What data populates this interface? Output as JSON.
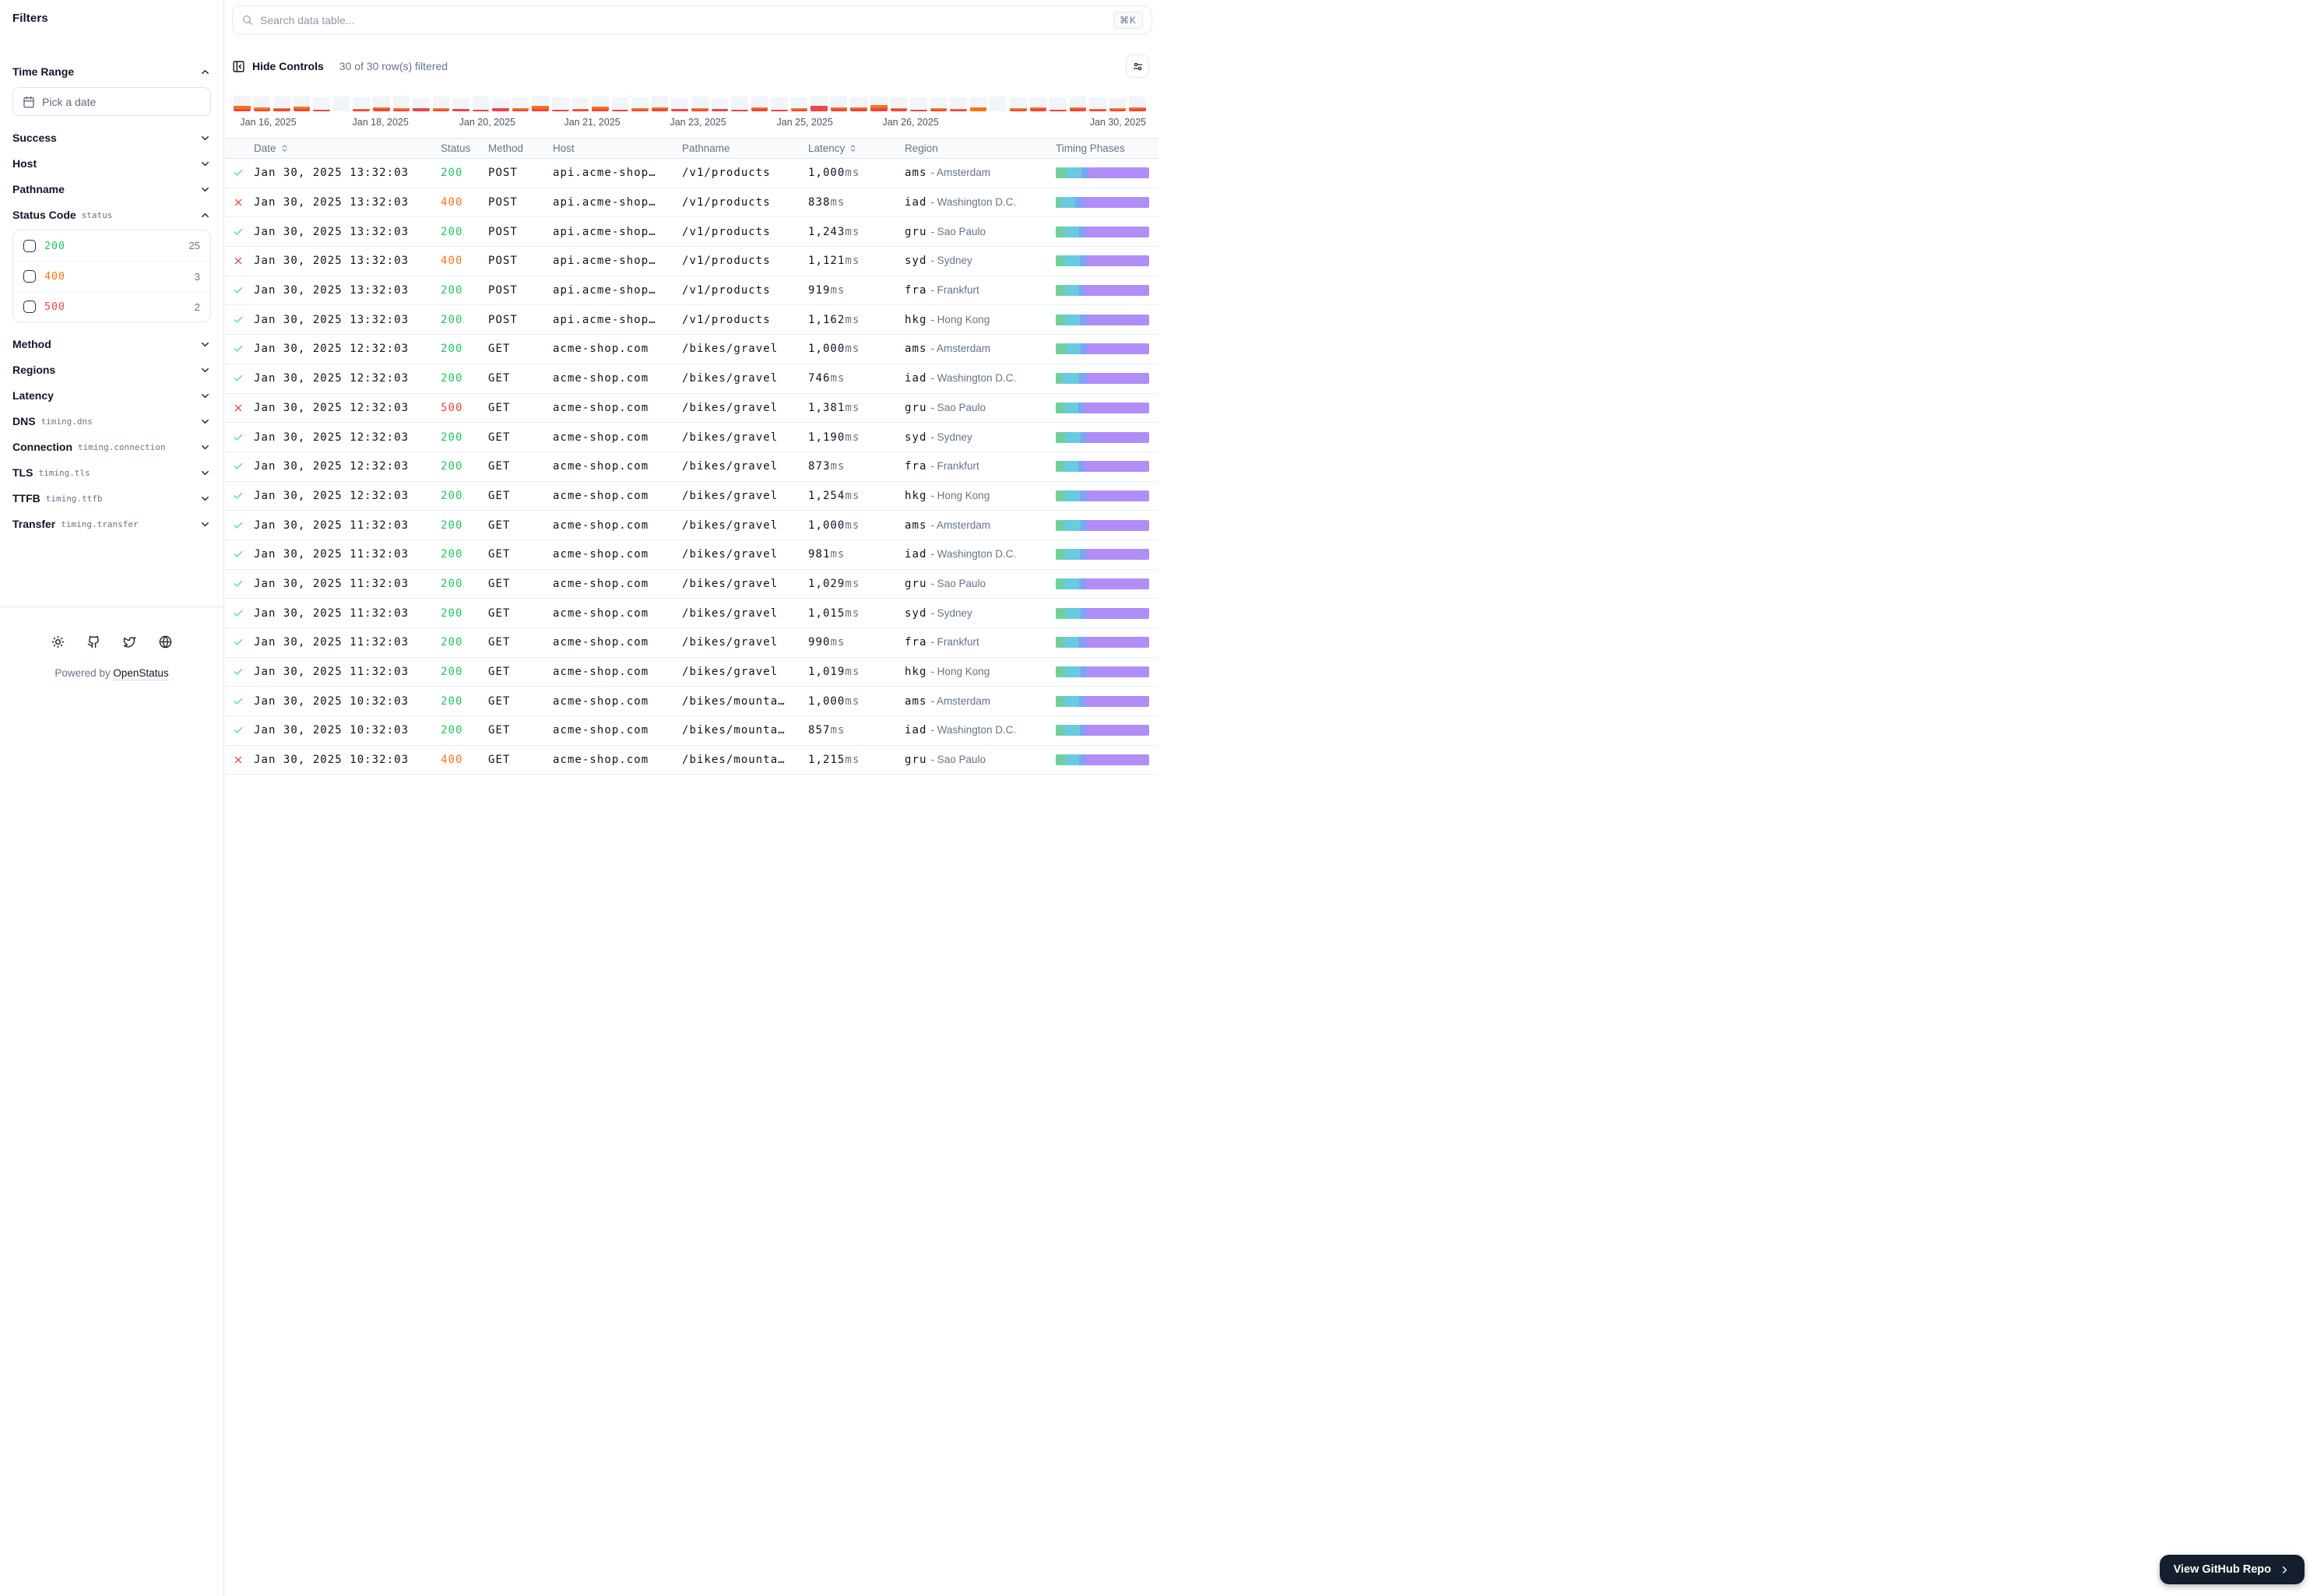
{
  "sidebar": {
    "title": "Filters",
    "date_placeholder": "Pick a date",
    "sections_top": [
      {
        "label": "Time Range",
        "expanded": true
      }
    ],
    "sections_mid": [
      {
        "label": "Success",
        "expanded": false
      },
      {
        "label": "Host",
        "expanded": false
      },
      {
        "label": "Pathname",
        "expanded": false
      },
      {
        "label": "Status Code",
        "code": "status",
        "expanded": true
      }
    ],
    "status_options": [
      {
        "value": "200",
        "count": "25",
        "color": "#22c55e"
      },
      {
        "value": "400",
        "count": "3",
        "color": "#f97316"
      },
      {
        "value": "500",
        "count": "2",
        "color": "#ef4444"
      }
    ],
    "sections_bottom": [
      {
        "label": "Method",
        "expanded": false
      },
      {
        "label": "Regions",
        "expanded": false
      },
      {
        "label": "Latency",
        "expanded": false
      },
      {
        "label": "DNS",
        "code": "timing.dns",
        "expanded": false
      },
      {
        "label": "Connection",
        "code": "timing.connection",
        "expanded": false
      },
      {
        "label": "TLS",
        "code": "timing.tls",
        "expanded": false
      },
      {
        "label": "TTFB",
        "code": "timing.ttfb",
        "expanded": false
      },
      {
        "label": "Transfer",
        "code": "timing.transfer",
        "expanded": false
      }
    ],
    "footer": {
      "icons": [
        "sun-icon",
        "github-icon",
        "twitter-icon",
        "globe-icon"
      ],
      "powered_prefix": "Powered by",
      "powered_link": "OpenStatus"
    }
  },
  "toolbar": {
    "search_placeholder": "Search data table...",
    "kbd": "⌘K",
    "hide_controls": "Hide Controls",
    "filtered": "30 of 30 row(s) filtered"
  },
  "colors": {
    "status": {
      "200": "#22c55e",
      "400": "#f97316",
      "500": "#ef4444"
    },
    "timing": [
      "#6fd09d",
      "#69cbdd",
      "#7aa5f8",
      "#b08df7"
    ],
    "chart": {
      "success": "#f1f5f9",
      "degraded": "#f97316",
      "error": "#ef4444"
    },
    "button_dark": "#141e2c"
  },
  "chart_data": {
    "type": "bar",
    "stacked": true,
    "legend_position": "none",
    "grid": false,
    "unit": "px-height (relative request volume per 8h bucket)",
    "series_names": [
      "success",
      "degraded",
      "error"
    ],
    "x_labels": [
      {
        "text": "Jan 16, 2025",
        "pos": 3.8
      },
      {
        "text": "Jan 18, 2025",
        "pos": 16.1
      },
      {
        "text": "Jan 20, 2025",
        "pos": 27.8
      },
      {
        "text": "Jan 21, 2025",
        "pos": 39.3
      },
      {
        "text": "Jan 23, 2025",
        "pos": 50.9
      },
      {
        "text": "Jan 25, 2025",
        "pos": 62.6
      },
      {
        "text": "Jan 26, 2025",
        "pos": 74.2
      },
      {
        "text": "Jan 30, 2025",
        "pos": 100
      }
    ],
    "bars": [
      [
        13,
        4,
        3
      ],
      [
        14,
        3,
        2
      ],
      [
        15,
        1,
        3
      ],
      [
        13,
        3,
        3
      ],
      [
        16,
        0,
        2
      ],
      [
        19,
        0,
        0
      ],
      [
        15,
        1,
        2
      ],
      [
        14,
        2,
        3
      ],
      [
        15,
        2,
        2
      ],
      [
        13,
        0,
        4
      ],
      [
        15,
        2,
        2
      ],
      [
        14,
        0,
        3
      ],
      [
        17,
        0,
        2
      ],
      [
        12,
        0,
        4
      ],
      [
        14,
        2,
        2
      ],
      [
        12,
        4,
        3
      ],
      [
        16,
        0,
        2
      ],
      [
        15,
        1,
        2
      ],
      [
        13,
        3,
        3
      ],
      [
        16,
        0,
        2
      ],
      [
        14,
        2,
        2
      ],
      [
        15,
        2,
        3
      ],
      [
        14,
        0,
        3
      ],
      [
        15,
        2,
        2
      ],
      [
        14,
        0,
        3
      ],
      [
        17,
        0,
        2
      ],
      [
        14,
        2,
        3
      ],
      [
        16,
        0,
        2
      ],
      [
        14,
        2,
        2
      ],
      [
        12,
        0,
        7
      ],
      [
        14,
        2,
        3
      ],
      [
        13,
        2,
        3
      ],
      [
        11,
        4,
        4
      ],
      [
        14,
        1,
        3
      ],
      [
        16,
        0,
        2
      ],
      [
        14,
        2,
        2
      ],
      [
        15,
        1,
        2
      ],
      [
        13,
        5,
        0
      ],
      [
        19,
        0,
        0
      ],
      [
        14,
        2,
        2
      ],
      [
        13,
        2,
        3
      ],
      [
        16,
        0,
        2
      ],
      [
        14,
        2,
        3
      ],
      [
        15,
        1,
        2
      ],
      [
        13,
        2,
        2
      ],
      [
        14,
        2,
        3
      ]
    ]
  },
  "table": {
    "latency_unit": "ms",
    "columns": [
      {
        "label": "Date",
        "sortable": true
      },
      {
        "label": "Status",
        "sortable": false
      },
      {
        "label": "Method",
        "sortable": false
      },
      {
        "label": "Host",
        "sortable": false
      },
      {
        "label": "Pathname",
        "sortable": false
      },
      {
        "label": "Latency",
        "sortable": true
      },
      {
        "label": "Region",
        "sortable": false
      },
      {
        "label": "Timing Phases",
        "sortable": false
      }
    ],
    "rows": [
      {
        "ok": true,
        "date": "Jan 30, 2025 13:32:03",
        "status": "200",
        "method": "POST",
        "host": "api.acme-shop…",
        "pathname": "/v1/products",
        "latency": "1,000",
        "region": "ams",
        "city": "Amsterdam",
        "timing": [
          11,
          17,
          7,
          65
        ]
      },
      {
        "ok": false,
        "date": "Jan 30, 2025 13:32:03",
        "status": "400",
        "method": "POST",
        "host": "api.acme-shop…",
        "pathname": "/v1/products",
        "latency": "838",
        "region": "iad",
        "city": "Washington D.C.",
        "timing": [
          5,
          16,
          8,
          71
        ]
      },
      {
        "ok": true,
        "date": "Jan 30, 2025 13:32:03",
        "status": "200",
        "method": "POST",
        "host": "api.acme-shop…",
        "pathname": "/v1/products",
        "latency": "1,243",
        "region": "gru",
        "city": "Sao Paulo",
        "timing": [
          9,
          16,
          6,
          69
        ]
      },
      {
        "ok": false,
        "date": "Jan 30, 2025 13:32:03",
        "status": "400",
        "method": "POST",
        "host": "api.acme-shop…",
        "pathname": "/v1/products",
        "latency": "1,121",
        "region": "syd",
        "city": "Sydney",
        "timing": [
          8,
          18,
          7,
          67
        ]
      },
      {
        "ok": true,
        "date": "Jan 30, 2025 13:32:03",
        "status": "200",
        "method": "POST",
        "host": "api.acme-shop…",
        "pathname": "/v1/products",
        "latency": "919",
        "region": "fra",
        "city": "Frankfurt",
        "timing": [
          10,
          15,
          6,
          69
        ]
      },
      {
        "ok": true,
        "date": "Jan 30, 2025 13:32:03",
        "status": "200",
        "method": "POST",
        "host": "api.acme-shop…",
        "pathname": "/v1/products",
        "latency": "1,162",
        "region": "hkg",
        "city": "Hong Kong",
        "timing": [
          9,
          17,
          7,
          67
        ]
      },
      {
        "ok": true,
        "date": "Jan 30, 2025 12:32:03",
        "status": "200",
        "method": "GET",
        "host": "acme-shop.com",
        "pathname": "/bikes/gravel",
        "latency": "1,000",
        "region": "ams",
        "city": "Amsterdam",
        "timing": [
          11,
          16,
          6,
          67
        ]
      },
      {
        "ok": true,
        "date": "Jan 30, 2025 12:32:03",
        "status": "200",
        "method": "GET",
        "host": "acme-shop.com",
        "pathname": "/bikes/gravel",
        "latency": "746",
        "region": "iad",
        "city": "Washington D.C.",
        "timing": [
          7,
          18,
          8,
          67
        ]
      },
      {
        "ok": false,
        "date": "Jan 30, 2025 12:32:03",
        "status": "500",
        "method": "GET",
        "host": "acme-shop.com",
        "pathname": "/bikes/gravel",
        "latency": "1,381",
        "region": "gru",
        "city": "Sao Paulo",
        "timing": [
          9,
          15,
          7,
          69
        ]
      },
      {
        "ok": true,
        "date": "Jan 30, 2025 12:32:03",
        "status": "200",
        "method": "GET",
        "host": "acme-shop.com",
        "pathname": "/bikes/gravel",
        "latency": "1,190",
        "region": "syd",
        "city": "Sydney",
        "timing": [
          10,
          17,
          6,
          67
        ]
      },
      {
        "ok": true,
        "date": "Jan 30, 2025 12:32:03",
        "status": "200",
        "method": "GET",
        "host": "acme-shop.com",
        "pathname": "/bikes/gravel",
        "latency": "873",
        "region": "fra",
        "city": "Frankfurt",
        "timing": [
          8,
          16,
          7,
          69
        ]
      },
      {
        "ok": true,
        "date": "Jan 30, 2025 12:32:03",
        "status": "200",
        "method": "GET",
        "host": "acme-shop.com",
        "pathname": "/bikes/gravel",
        "latency": "1,254",
        "region": "hkg",
        "city": "Hong Kong",
        "timing": [
          11,
          15,
          7,
          67
        ]
      },
      {
        "ok": true,
        "date": "Jan 30, 2025 11:32:03",
        "status": "200",
        "method": "GET",
        "host": "acme-shop.com",
        "pathname": "/bikes/gravel",
        "latency": "1,000",
        "region": "ams",
        "city": "Amsterdam",
        "timing": [
          9,
          18,
          6,
          67
        ]
      },
      {
        "ok": true,
        "date": "Jan 30, 2025 11:32:03",
        "status": "200",
        "method": "GET",
        "host": "acme-shop.com",
        "pathname": "/bikes/gravel",
        "latency": "981",
        "region": "iad",
        "city": "Washington D.C.",
        "timing": [
          10,
          16,
          7,
          67
        ]
      },
      {
        "ok": true,
        "date": "Jan 30, 2025 11:32:03",
        "status": "200",
        "method": "GET",
        "host": "acme-shop.com",
        "pathname": "/bikes/gravel",
        "latency": "1,029",
        "region": "gru",
        "city": "Sao Paulo",
        "timing": [
          8,
          17,
          7,
          68
        ]
      },
      {
        "ok": true,
        "date": "Jan 30, 2025 11:32:03",
        "status": "200",
        "method": "GET",
        "host": "acme-shop.com",
        "pathname": "/bikes/gravel",
        "latency": "1,015",
        "region": "syd",
        "city": "Sydney",
        "timing": [
          11,
          16,
          6,
          67
        ]
      },
      {
        "ok": true,
        "date": "Jan 30, 2025 11:32:03",
        "status": "200",
        "method": "GET",
        "host": "acme-shop.com",
        "pathname": "/bikes/gravel",
        "latency": "990",
        "region": "fra",
        "city": "Frankfurt",
        "timing": [
          9,
          15,
          8,
          68
        ]
      },
      {
        "ok": true,
        "date": "Jan 30, 2025 11:32:03",
        "status": "200",
        "method": "GET",
        "host": "acme-shop.com",
        "pathname": "/bikes/gravel",
        "latency": "1,019",
        "region": "hkg",
        "city": "Hong Kong",
        "timing": [
          10,
          17,
          6,
          67
        ]
      },
      {
        "ok": true,
        "date": "Jan 30, 2025 10:32:03",
        "status": "200",
        "method": "GET",
        "host": "acme-shop.com",
        "pathname": "/bikes/mounta…",
        "latency": "1,000",
        "region": "ams",
        "city": "Amsterdam",
        "timing": [
          9,
          16,
          7,
          68
        ]
      },
      {
        "ok": true,
        "date": "Jan 30, 2025 10:32:03",
        "status": "200",
        "method": "GET",
        "host": "acme-shop.com",
        "pathname": "/bikes/mounta…",
        "latency": "857",
        "region": "iad",
        "city": "Washington D.C.",
        "timing": [
          8,
          18,
          6,
          68
        ]
      },
      {
        "ok": false,
        "date": "Jan 30, 2025 10:32:03",
        "status": "400",
        "method": "GET",
        "host": "acme-shop.com",
        "pathname": "/bikes/mounta…",
        "latency": "1,215",
        "region": "gru",
        "city": "Sao Paulo",
        "timing": [
          10,
          15,
          7,
          68
        ]
      }
    ]
  },
  "github_button": {
    "label": "View GitHub Repo"
  }
}
